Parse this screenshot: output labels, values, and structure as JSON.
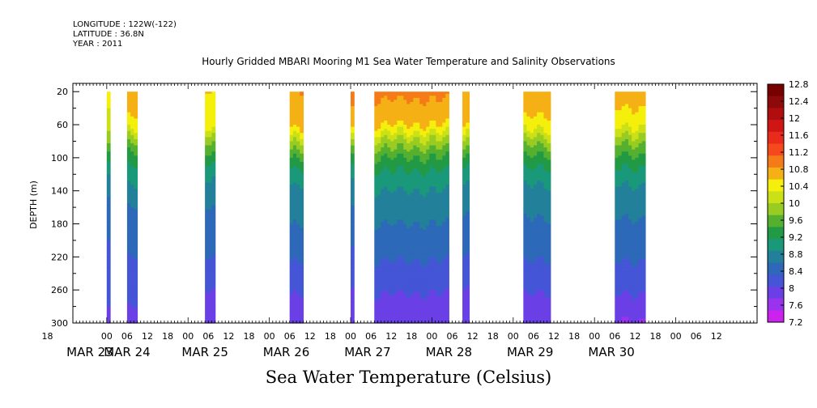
{
  "header": {
    "longitude": "LONGITUDE : 122W(-122)",
    "latitude": "LATITUDE : 36.8N",
    "year": "YEAR : 2011"
  },
  "chart_data": {
    "type": "heatmap",
    "title": "Hourly Gridded MBARI Mooring M1 Sea Water Temperature and Salinity Observations",
    "xlabel": "Sea Water Temperature (Celsius)",
    "ylabel": "DEPTH (m)",
    "x_unit": "hours since MAR 23 00:00, 2011",
    "xlim": [
      -10,
      192
    ],
    "ylim": [
      300,
      10
    ],
    "y_inverted": true,
    "y_ticks": [
      20,
      60,
      100,
      140,
      180,
      220,
      260,
      300
    ],
    "hour_ticks": [
      {
        "x": -18,
        "label": "18"
      },
      {
        "x": 0,
        "label": "00"
      },
      {
        "x": 6,
        "label": "06"
      },
      {
        "x": 12,
        "label": "12"
      },
      {
        "x": 18,
        "label": "18"
      },
      {
        "x": 24,
        "label": "00"
      },
      {
        "x": 30,
        "label": "06"
      },
      {
        "x": 36,
        "label": "12"
      },
      {
        "x": 42,
        "label": "18"
      },
      {
        "x": 48,
        "label": "00"
      },
      {
        "x": 54,
        "label": "06"
      },
      {
        "x": 60,
        "label": "12"
      },
      {
        "x": 66,
        "label": "18"
      },
      {
        "x": 72,
        "label": "00"
      },
      {
        "x": 78,
        "label": "06"
      },
      {
        "x": 84,
        "label": "12"
      },
      {
        "x": 90,
        "label": "18"
      },
      {
        "x": 96,
        "label": "00"
      },
      {
        "x": 102,
        "label": "06"
      },
      {
        "x": 108,
        "label": "12"
      },
      {
        "x": 114,
        "label": "18"
      },
      {
        "x": 120,
        "label": "00"
      },
      {
        "x": 126,
        "label": "06"
      },
      {
        "x": 132,
        "label": "12"
      },
      {
        "x": 138,
        "label": "18"
      },
      {
        "x": 144,
        "label": "00"
      },
      {
        "x": 150,
        "label": "06"
      },
      {
        "x": 156,
        "label": "12"
      },
      {
        "x": 162,
        "label": "18"
      },
      {
        "x": 168,
        "label": "00"
      },
      {
        "x": 174,
        "label": "06"
      },
      {
        "x": 180,
        "label": "12"
      }
    ],
    "date_labels": [
      {
        "x": -5,
        "label": "MAR 23"
      },
      {
        "x": 6,
        "label": "MAR 24"
      },
      {
        "x": 29,
        "label": "MAR 25"
      },
      {
        "x": 53,
        "label": "MAR 26"
      },
      {
        "x": 77,
        "label": "MAR 27"
      },
      {
        "x": 101,
        "label": "MAR 28"
      },
      {
        "x": 125,
        "label": "MAR 29"
      },
      {
        "x": 149,
        "label": "MAR 30"
      }
    ],
    "colorbar": {
      "levels": [
        7.2,
        7.6,
        8,
        8.4,
        8.8,
        9.2,
        9.6,
        10,
        10.4,
        10.8,
        11.2,
        11.6,
        12,
        12.4,
        12.8
      ],
      "colors": [
        "#cc22ee",
        "#9933ee",
        "#6a40e6",
        "#4455d6",
        "#2d69b8",
        "#23809a",
        "#1a987a",
        "#229a45",
        "#55b030",
        "#99cc22",
        "#cce018",
        "#f4f00c",
        "#f5b015",
        "#f57a18",
        "#f5481c",
        "#ea2a1a",
        "#d01515",
        "#b00e0e",
        "#8e0a0a",
        "#770000"
      ]
    },
    "profile_depths": [
      20,
      40,
      60,
      80,
      100,
      120,
      140,
      160,
      180,
      200,
      220,
      240,
      260,
      280,
      300
    ],
    "mean_profile_temperature": [
      11.9,
      11.7,
      11.5,
      10.6,
      9.9,
      9.4,
      9.1,
      8.9,
      8.75,
      8.6,
      8.45,
      8.25,
      8.05,
      7.85,
      7.7
    ],
    "segments": [
      {
        "x0": 0,
        "x1": 1,
        "temperature": [
          11.2,
          11.2,
          11.0,
          10.5,
          9.7,
          9.2,
          8.9,
          8.6,
          8.5,
          8.4,
          8.3,
          8.2,
          8.1,
          8.0,
          7.9
        ]
      },
      {
        "x0": 6,
        "x1": 9,
        "temperature": [
          11.7,
          11.7,
          11.5,
          10.5,
          9.8,
          9.4,
          9.1,
          8.8,
          8.7,
          8.6,
          8.4,
          8.25,
          8.1,
          8.0,
          7.9
        ]
      },
      {
        "x0": 29,
        "x1": 32,
        "temperature": [
          11.6,
          11.5,
          11.4,
          10.5,
          9.8,
          9.3,
          9.0,
          8.8,
          8.7,
          8.55,
          8.4,
          8.2,
          8.0,
          7.85,
          7.75
        ]
      },
      {
        "x0": 54,
        "x1": 58,
        "temperature": [
          12.0,
          11.9,
          11.8,
          10.8,
          10.0,
          9.4,
          9.1,
          8.9,
          8.8,
          8.6,
          8.45,
          8.25,
          8.05,
          7.85,
          7.7
        ]
      },
      {
        "x0": 72,
        "x1": 73,
        "temperature": [
          12.1,
          12.0,
          11.9,
          10.8,
          9.9,
          9.3,
          9.0,
          8.8,
          8.7,
          8.5,
          8.3,
          8.1,
          8.0,
          7.9,
          7.8
        ]
      },
      {
        "x0": 79,
        "x1": 101,
        "temperature": [
          12.1,
          11.9,
          11.6,
          10.7,
          10.0,
          9.5,
          9.2,
          9.0,
          8.8,
          8.6,
          8.45,
          8.25,
          8.05,
          7.85,
          7.65
        ]
      },
      {
        "x0": 105,
        "x1": 107,
        "temperature": [
          12.0,
          11.8,
          11.7,
          10.8,
          10.0,
          9.4,
          9.1,
          8.9,
          8.7,
          8.55,
          8.4,
          8.2,
          8.0,
          7.85,
          7.7
        ]
      },
      {
        "x0": 123,
        "x1": 131,
        "temperature": [
          11.9,
          11.7,
          11.5,
          10.6,
          9.9,
          9.4,
          9.1,
          8.9,
          8.75,
          8.6,
          8.45,
          8.25,
          8.05,
          7.85,
          7.7
        ]
      },
      {
        "x0": 150,
        "x1": 159,
        "temperature": [
          11.8,
          11.6,
          11.3,
          10.5,
          9.9,
          9.4,
          9.1,
          8.9,
          8.75,
          8.6,
          8.45,
          8.25,
          8.05,
          7.85,
          7.55
        ]
      }
    ]
  }
}
